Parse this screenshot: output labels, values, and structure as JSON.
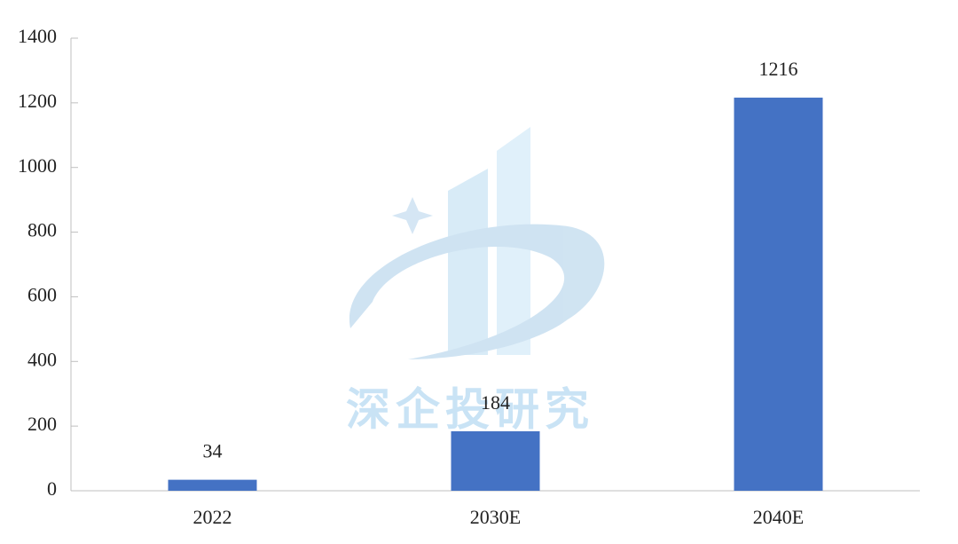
{
  "chart_data": {
    "type": "bar",
    "categories": [
      "2022",
      "2030E",
      "2040E"
    ],
    "values": [
      34,
      184,
      1216
    ],
    "color": "#4472c4",
    "ylim": [
      0,
      1400
    ],
    "yticks": [
      0,
      200,
      400,
      600,
      800,
      1000,
      1200,
      1400
    ],
    "data_labels": true,
    "watermark": "深企投研究"
  }
}
